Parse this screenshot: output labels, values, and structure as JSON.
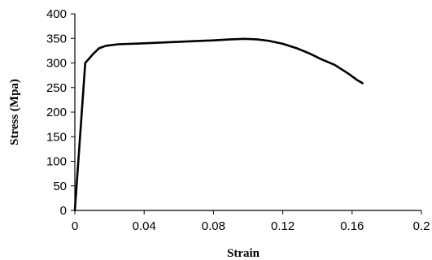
{
  "chart_data": {
    "type": "line",
    "title": "",
    "xlabel": "Strain",
    "ylabel": "Stress (Mpa)",
    "xlim": [
      0,
      0.2
    ],
    "ylim": [
      0,
      400
    ],
    "x_ticks": [
      "0",
      "0.04",
      "0.08",
      "0.12",
      "0.16",
      "0.2"
    ],
    "y_ticks": [
      "0",
      "50",
      "100",
      "150",
      "200",
      "250",
      "300",
      "350",
      "400"
    ],
    "x_tick_values": [
      0,
      0.04,
      0.08,
      0.12,
      0.16,
      0.2
    ],
    "y_tick_values": [
      0,
      50,
      100,
      150,
      200,
      250,
      300,
      350,
      400
    ],
    "grid": false,
    "legend": "none",
    "series": [
      {
        "x": [
          0,
          0.006,
          0.008,
          0.011,
          0.014,
          0.018,
          0.025,
          0.04,
          0.06,
          0.08,
          0.09,
          0.098,
          0.105,
          0.112,
          0.12,
          0.128,
          0.135,
          0.142,
          0.15,
          0.158,
          0.163,
          0.166
        ],
        "y": [
          0,
          300,
          308,
          320,
          330,
          335,
          338,
          340,
          343,
          346,
          348,
          349,
          348,
          345,
          339,
          330,
          320,
          308,
          296,
          278,
          265,
          259
        ],
        "color": "#000000"
      }
    ]
  }
}
